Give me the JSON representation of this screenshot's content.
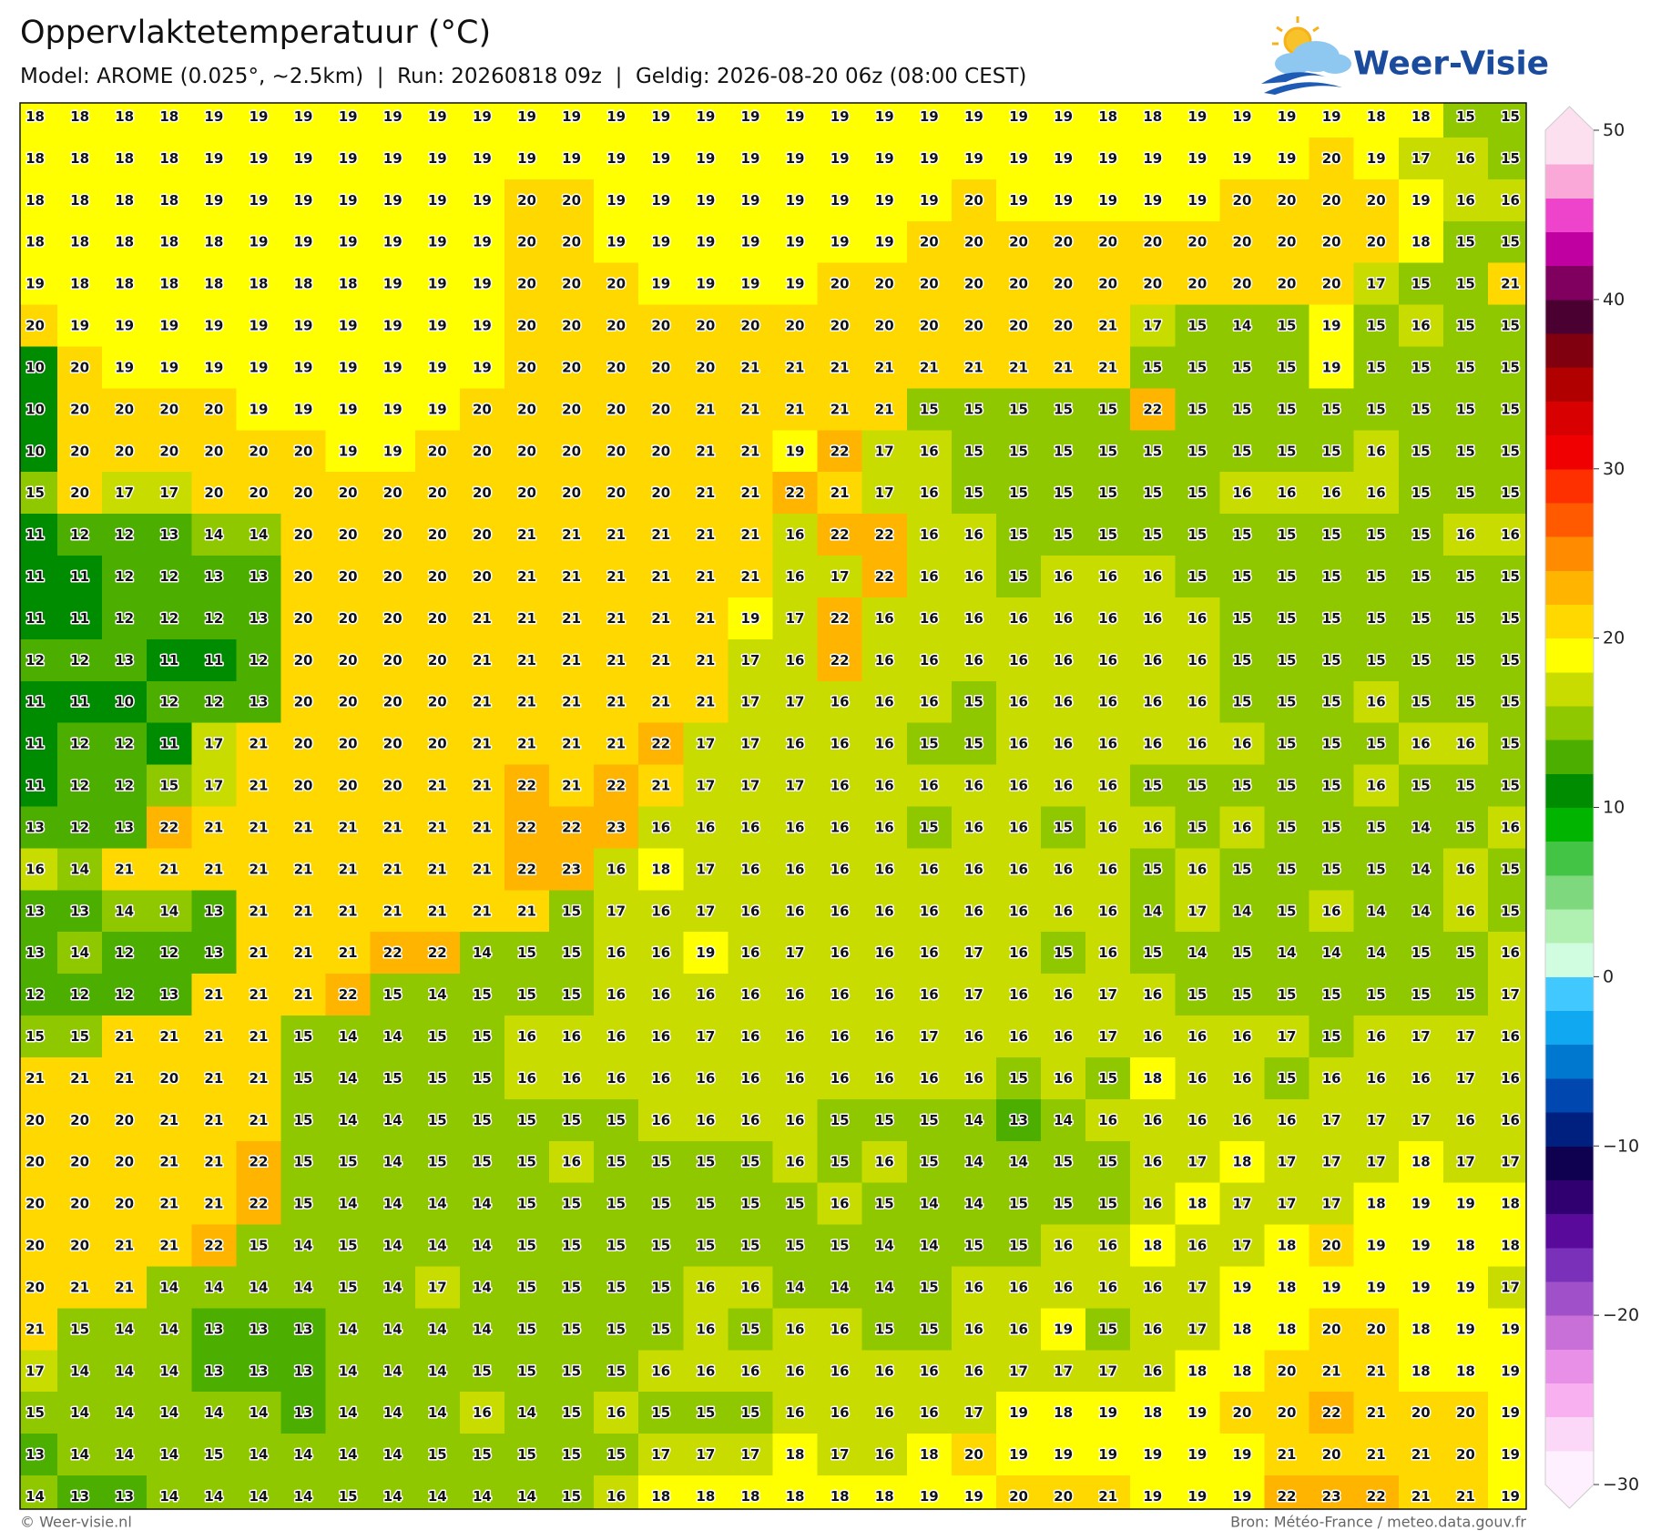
{
  "header": {
    "title": "Oppervlaktetemperatuur (°C)",
    "subtitle": "Model: AROME (0.025°, ~2.5km)  |  Run: 20260818 09z  |  Geldig: 2026-08-20 06z (08:00 CEST)",
    "logo": "Weer-Visie"
  },
  "map": {
    "values": [
      [
        18,
        18,
        18,
        18,
        19,
        19,
        19,
        19,
        19,
        19,
        19,
        19,
        19,
        19,
        19,
        19,
        19,
        19,
        19,
        19,
        19,
        19,
        19,
        19,
        18,
        18,
        19,
        19,
        19,
        19,
        18,
        18,
        15,
        15
      ],
      [
        18,
        18,
        18,
        18,
        19,
        19,
        19,
        19,
        19,
        19,
        19,
        19,
        19,
        19,
        19,
        19,
        19,
        19,
        19,
        19,
        19,
        19,
        19,
        19,
        19,
        19,
        19,
        19,
        19,
        20,
        19,
        17,
        16,
        15
      ],
      [
        18,
        18,
        18,
        18,
        19,
        19,
        19,
        19,
        19,
        19,
        19,
        20,
        20,
        19,
        19,
        19,
        19,
        19,
        19,
        19,
        19,
        20,
        19,
        19,
        19,
        19,
        19,
        20,
        20,
        20,
        20,
        19,
        16,
        16
      ],
      [
        18,
        18,
        18,
        18,
        18,
        19,
        19,
        19,
        19,
        19,
        19,
        20,
        20,
        19,
        19,
        19,
        19,
        19,
        19,
        19,
        20,
        20,
        20,
        20,
        20,
        20,
        20,
        20,
        20,
        20,
        20,
        18,
        15,
        15
      ],
      [
        19,
        18,
        18,
        18,
        18,
        18,
        18,
        18,
        19,
        19,
        19,
        20,
        20,
        20,
        19,
        19,
        19,
        19,
        20,
        20,
        20,
        20,
        20,
        20,
        20,
        20,
        20,
        20,
        20,
        20,
        17,
        15,
        15,
        21
      ],
      [
        20,
        19,
        19,
        19,
        19,
        19,
        19,
        19,
        19,
        19,
        19,
        20,
        20,
        20,
        20,
        20,
        20,
        20,
        20,
        20,
        20,
        20,
        20,
        20,
        21,
        17,
        15,
        14,
        15,
        19,
        15,
        16,
        15,
        15
      ],
      [
        10,
        20,
        19,
        19,
        19,
        19,
        19,
        19,
        19,
        19,
        19,
        20,
        20,
        20,
        20,
        20,
        21,
        21,
        21,
        21,
        21,
        21,
        21,
        21,
        21,
        15,
        15,
        15,
        15,
        19,
        15,
        15,
        15,
        15
      ],
      [
        10,
        20,
        20,
        20,
        20,
        19,
        19,
        19,
        19,
        19,
        20,
        20,
        20,
        20,
        20,
        21,
        21,
        21,
        21,
        21,
        15,
        15,
        15,
        15,
        15,
        22,
        15,
        15,
        15,
        15,
        15,
        15,
        15,
        15
      ],
      [
        10,
        20,
        20,
        20,
        20,
        20,
        20,
        19,
        19,
        20,
        20,
        20,
        20,
        20,
        20,
        21,
        21,
        19,
        22,
        17,
        16,
        15,
        15,
        15,
        15,
        15,
        15,
        15,
        15,
        15,
        16,
        15,
        15,
        15
      ],
      [
        15,
        20,
        17,
        17,
        20,
        20,
        20,
        20,
        20,
        20,
        20,
        20,
        20,
        20,
        20,
        21,
        21,
        22,
        21,
        17,
        16,
        15,
        15,
        15,
        15,
        15,
        15,
        16,
        16,
        16,
        16,
        15,
        15,
        15
      ],
      [
        11,
        12,
        12,
        13,
        14,
        14,
        20,
        20,
        20,
        20,
        20,
        21,
        21,
        21,
        21,
        21,
        21,
        16,
        22,
        22,
        16,
        16,
        15,
        15,
        15,
        15,
        15,
        15,
        15,
        15,
        15,
        15,
        16,
        16
      ],
      [
        11,
        11,
        12,
        12,
        13,
        13,
        20,
        20,
        20,
        20,
        20,
        21,
        21,
        21,
        21,
        21,
        21,
        16,
        17,
        22,
        16,
        16,
        15,
        16,
        16,
        16,
        15,
        15,
        15,
        15,
        15,
        15,
        15,
        15
      ],
      [
        11,
        11,
        12,
        12,
        12,
        13,
        20,
        20,
        20,
        20,
        21,
        21,
        21,
        21,
        21,
        21,
        19,
        17,
        22,
        16,
        16,
        16,
        16,
        16,
        16,
        16,
        16,
        15,
        15,
        15,
        15,
        15,
        15,
        15
      ],
      [
        12,
        12,
        13,
        11,
        11,
        12,
        20,
        20,
        20,
        20,
        21,
        21,
        21,
        21,
        21,
        21,
        17,
        16,
        22,
        16,
        16,
        16,
        16,
        16,
        16,
        16,
        16,
        15,
        15,
        15,
        15,
        15,
        15,
        15
      ],
      [
        11,
        11,
        10,
        12,
        12,
        13,
        20,
        20,
        20,
        20,
        21,
        21,
        21,
        21,
        21,
        21,
        17,
        17,
        16,
        16,
        16,
        15,
        16,
        16,
        16,
        16,
        16,
        15,
        15,
        15,
        16,
        15,
        15,
        15
      ],
      [
        11,
        12,
        12,
        11,
        17,
        21,
        20,
        20,
        20,
        20,
        21,
        21,
        21,
        21,
        22,
        17,
        17,
        16,
        16,
        16,
        15,
        15,
        16,
        16,
        16,
        16,
        16,
        16,
        15,
        15,
        15,
        16,
        16,
        15
      ],
      [
        11,
        12,
        12,
        15,
        17,
        21,
        20,
        20,
        20,
        21,
        21,
        22,
        21,
        22,
        21,
        17,
        17,
        17,
        16,
        16,
        16,
        16,
        16,
        16,
        16,
        15,
        15,
        15,
        15,
        15,
        16,
        15,
        15,
        15
      ],
      [
        13,
        12,
        13,
        22,
        21,
        21,
        21,
        21,
        21,
        21,
        21,
        22,
        22,
        23,
        16,
        16,
        16,
        16,
        16,
        16,
        15,
        16,
        16,
        15,
        16,
        16,
        15,
        16,
        15,
        15,
        15,
        14,
        15,
        16
      ],
      [
        16,
        14,
        21,
        21,
        21,
        21,
        21,
        21,
        21,
        21,
        21,
        22,
        23,
        16,
        18,
        17,
        16,
        16,
        16,
        16,
        16,
        16,
        16,
        16,
        16,
        15,
        16,
        15,
        15,
        15,
        15,
        14,
        16,
        15
      ],
      [
        13,
        13,
        14,
        14,
        13,
        21,
        21,
        21,
        21,
        21,
        21,
        21,
        15,
        17,
        16,
        17,
        16,
        16,
        16,
        16,
        16,
        16,
        16,
        16,
        16,
        14,
        17,
        14,
        15,
        16,
        14,
        14,
        16,
        15
      ],
      [
        13,
        14,
        12,
        12,
        13,
        21,
        21,
        21,
        22,
        22,
        14,
        15,
        15,
        16,
        16,
        19,
        16,
        17,
        16,
        16,
        16,
        17,
        16,
        15,
        16,
        15,
        14,
        15,
        14,
        14,
        14,
        15,
        15,
        16
      ],
      [
        12,
        12,
        12,
        13,
        21,
        21,
        21,
        22,
        15,
        14,
        15,
        15,
        15,
        16,
        16,
        16,
        16,
        16,
        16,
        16,
        16,
        17,
        16,
        16,
        17,
        16,
        15,
        15,
        15,
        15,
        15,
        15,
        15,
        17
      ],
      [
        15,
        15,
        21,
        21,
        21,
        21,
        15,
        14,
        14,
        15,
        15,
        16,
        16,
        16,
        16,
        17,
        16,
        16,
        16,
        16,
        17,
        16,
        16,
        16,
        17,
        16,
        16,
        16,
        17,
        15,
        16,
        17,
        17,
        16
      ],
      [
        21,
        21,
        21,
        20,
        21,
        21,
        15,
        14,
        15,
        15,
        15,
        16,
        16,
        16,
        16,
        16,
        16,
        16,
        16,
        16,
        16,
        16,
        15,
        16,
        15,
        18,
        16,
        16,
        15,
        16,
        16,
        16,
        17,
        16
      ],
      [
        20,
        20,
        20,
        21,
        21,
        21,
        15,
        14,
        14,
        15,
        15,
        15,
        15,
        15,
        16,
        16,
        16,
        16,
        15,
        15,
        15,
        14,
        13,
        14,
        16,
        16,
        16,
        16,
        16,
        17,
        17,
        17,
        16,
        16
      ],
      [
        20,
        20,
        20,
        21,
        21,
        22,
        15,
        15,
        14,
        15,
        15,
        15,
        16,
        15,
        15,
        15,
        15,
        16,
        15,
        16,
        15,
        14,
        14,
        15,
        15,
        16,
        17,
        18,
        17,
        17,
        17,
        18,
        17,
        17
      ],
      [
        20,
        20,
        20,
        21,
        21,
        22,
        15,
        14,
        14,
        14,
        14,
        15,
        15,
        15,
        15,
        15,
        15,
        15,
        16,
        15,
        14,
        14,
        15,
        15,
        15,
        16,
        18,
        17,
        17,
        17,
        18,
        19,
        19,
        18
      ],
      [
        20,
        20,
        21,
        21,
        22,
        15,
        14,
        15,
        14,
        14,
        14,
        15,
        15,
        15,
        15,
        15,
        15,
        15,
        15,
        14,
        14,
        15,
        15,
        16,
        16,
        18,
        16,
        17,
        18,
        20,
        19,
        19,
        18,
        18
      ],
      [
        20,
        21,
        21,
        14,
        14,
        14,
        14,
        15,
        14,
        17,
        14,
        15,
        15,
        15,
        15,
        16,
        16,
        14,
        14,
        14,
        15,
        16,
        16,
        16,
        16,
        16,
        17,
        19,
        18,
        19,
        19,
        19,
        19,
        17
      ],
      [
        21,
        15,
        14,
        14,
        13,
        13,
        13,
        14,
        14,
        14,
        14,
        15,
        15,
        15,
        15,
        16,
        15,
        16,
        16,
        15,
        15,
        16,
        16,
        19,
        15,
        16,
        17,
        18,
        18,
        20,
        20,
        18,
        19,
        19
      ],
      [
        17,
        14,
        14,
        14,
        13,
        13,
        13,
        14,
        14,
        14,
        15,
        15,
        15,
        15,
        16,
        16,
        16,
        16,
        16,
        16,
        16,
        16,
        17,
        17,
        17,
        16,
        18,
        18,
        20,
        21,
        21,
        18,
        18,
        19
      ],
      [
        15,
        14,
        14,
        14,
        14,
        14,
        13,
        14,
        14,
        14,
        16,
        14,
        15,
        16,
        15,
        15,
        15,
        16,
        16,
        16,
        16,
        17,
        19,
        18,
        19,
        18,
        19,
        20,
        20,
        22,
        21,
        20,
        20,
        19
      ],
      [
        13,
        14,
        14,
        14,
        15,
        14,
        14,
        14,
        14,
        15,
        15,
        15,
        15,
        15,
        17,
        17,
        17,
        18,
        17,
        16,
        18,
        20,
        19,
        19,
        19,
        19,
        19,
        19,
        21,
        20,
        21,
        21,
        20,
        19
      ],
      [
        14,
        13,
        13,
        14,
        14,
        14,
        14,
        15,
        14,
        14,
        14,
        14,
        15,
        16,
        18,
        18,
        18,
        18,
        18,
        18,
        19,
        19,
        20,
        20,
        21,
        19,
        19,
        19,
        22,
        23,
        22,
        21,
        21,
        19
      ]
    ]
  },
  "colorbar": {
    "lim": [
      -30,
      50
    ],
    "ticks": [
      {
        "value": -30,
        "label": "−30"
      },
      {
        "value": -20,
        "label": "−20"
      },
      {
        "value": -10,
        "label": "−10"
      },
      0,
      10,
      20,
      30,
      40,
      50
    ],
    "colors": [
      "#fff0ff",
      "#fcd8f8",
      "#f8b0f0",
      "#e890e8",
      "#c870d8",
      "#a050c8",
      "#7a30b8",
      "#5a0a9a",
      "#300070",
      "#100050",
      "#002080",
      "#0048b0",
      "#0078d0",
      "#10a8f0",
      "#40c8ff",
      "#d0fce0",
      "#b0f0b0",
      "#7ed87e",
      "#44c444",
      "#00b400",
      "#008c00",
      "#4caf00",
      "#90c800",
      "#c8dc00",
      "#ffff00",
      "#ffd800",
      "#ffb400",
      "#ff8c00",
      "#ff5a00",
      "#ff3000",
      "#f00000",
      "#d80000",
      "#b00000",
      "#800010",
      "#4a0030",
      "#800060",
      "#c000a0",
      "#ee44cc",
      "#f9a8d8",
      "#fde0ef"
    ]
  },
  "footer": {
    "left": "© Weer-visie.nl",
    "right": "Bron: Météo-France / meteo.data.gouv.fr"
  }
}
